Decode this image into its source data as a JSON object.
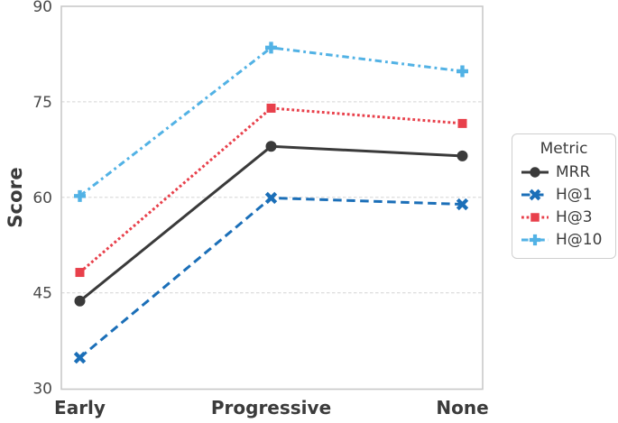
{
  "chart_data": {
    "type": "line",
    "title": "",
    "xlabel": "",
    "ylabel": "Score",
    "categories": [
      "Early",
      "Progressive",
      "None"
    ],
    "yticks": [
      30,
      45,
      60,
      75,
      90
    ],
    "ylim": [
      30,
      90
    ],
    "grid": "horizontal-dashed",
    "legend_title": "Metric",
    "legend_position": "outside-right-center",
    "series": [
      {
        "name": "MRR",
        "values": [
          43.7,
          68.0,
          66.5
        ],
        "color": "#3a3a3a",
        "marker": "circle",
        "line_style": "solid"
      },
      {
        "name": "H@1",
        "values": [
          34.8,
          59.9,
          58.9
        ],
        "color": "#1b6fb8",
        "marker": "x",
        "line_style": "dashed"
      },
      {
        "name": "H@3",
        "values": [
          48.2,
          74.0,
          71.6
        ],
        "color": "#e8404b",
        "marker": "square",
        "line_style": "dotted"
      },
      {
        "name": "H@10",
        "values": [
          60.2,
          83.5,
          79.8
        ],
        "color": "#52b2e5",
        "marker": "plus",
        "line_style": "dashdot"
      }
    ],
    "frame_color": "#c9c9c9",
    "gridline_color": "#dcdcdc",
    "tick_label_color": "#4a4a4a",
    "category_label_color": "#3b3b3b"
  }
}
